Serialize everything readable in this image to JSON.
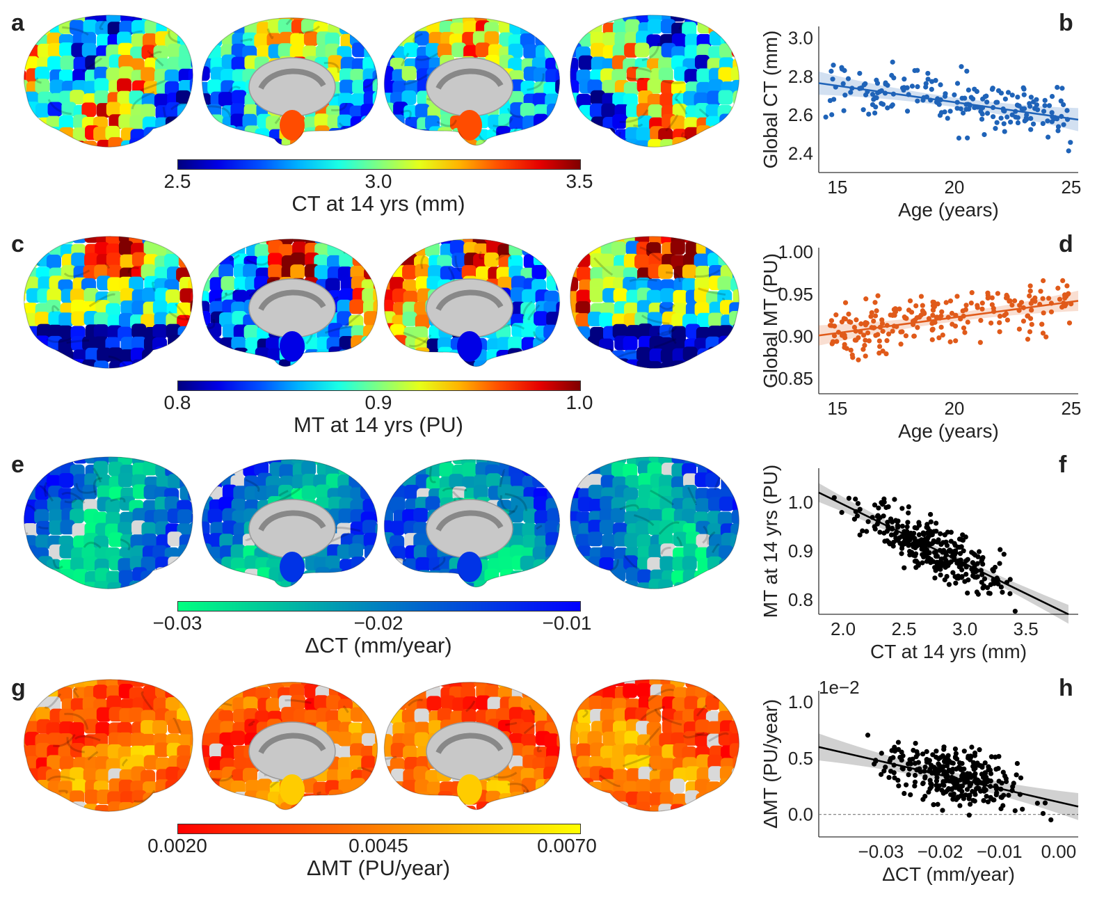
{
  "panels": {
    "a": "a",
    "b": "b",
    "c": "c",
    "d": "d",
    "e": "e",
    "f": "f",
    "g": "g",
    "h": "h"
  },
  "colorbars": [
    {
      "ticks": [
        "2.5",
        "3.0",
        "3.5"
      ],
      "label": "CT at 14 yrs (mm)",
      "colormap": "jet"
    },
    {
      "ticks": [
        "0.8",
        "0.9",
        "1.0"
      ],
      "label": "MT at 14 yrs (PU)",
      "colormap": "jet"
    },
    {
      "ticks": [
        "−0.03",
        "−0.02",
        "−0.01"
      ],
      "label": "ΔCT (mm/year)",
      "colormap": "winter_r"
    },
    {
      "ticks": [
        "0.0020",
        "0.0045",
        "0.0070"
      ],
      "label": "ΔMT (PU/year)",
      "colormap": "autumn"
    }
  ],
  "chart_data": [
    {
      "panel": "b",
      "type": "scatter",
      "xlabel": "Age (years)",
      "ylabel": "Global CT (mm)",
      "xlim": [
        14.2,
        25.3
      ],
      "ylim": [
        2.3,
        3.06
      ],
      "xticks": [
        "15",
        "20",
        "25"
      ],
      "yticks": [
        "2.4",
        "2.6",
        "2.8",
        "3.0"
      ],
      "color": "#1f63b8",
      "fit": {
        "x": [
          14.2,
          25.3
        ],
        "y": [
          2.765,
          2.575
        ],
        "ci": 0.025
      },
      "n_points": 200
    },
    {
      "panel": "d",
      "type": "scatter",
      "xlabel": "Age (years)",
      "ylabel": "Global MT (PU)",
      "xlim": [
        14.2,
        25.3
      ],
      "ylim": [
        0.832,
        1.005
      ],
      "xticks": [
        "15",
        "20",
        "25"
      ],
      "yticks": [
        "0.85",
        "0.90",
        "0.95",
        "1.00"
      ],
      "color": "#e05a1a",
      "fit": {
        "x": [
          14.2,
          25.3
        ],
        "y": [
          0.901,
          0.942
        ],
        "ci": 0.005
      },
      "n_points": 230
    },
    {
      "panel": "f",
      "type": "scatter",
      "xlabel": "CT at 14 yrs (mm)",
      "ylabel": "MT at 14 yrs (PU)",
      "xlim": [
        1.8,
        3.93
      ],
      "ylim": [
        0.77,
        1.07
      ],
      "xticks": [
        "2.0",
        "2.5",
        "3.0",
        "3.5"
      ],
      "yticks": [
        "0.8",
        "0.9",
        "1.0"
      ],
      "color": "#000000",
      "fit": {
        "x": [
          1.8,
          3.85
        ],
        "y": [
          1.02,
          0.77
        ],
        "ci": 0.008
      },
      "n_points": 330
    },
    {
      "panel": "h",
      "type": "scatter",
      "xlabel": "ΔCT (mm/year)",
      "ylabel": "ΔMT (PU/year)",
      "offset_label": "1e−2",
      "xlim": [
        -0.0405,
        0.0033
      ],
      "ylim": [
        -0.2,
        1.1
      ],
      "xticks": [
        "−0.03",
        "−0.02",
        "−0.01",
        "0.00"
      ],
      "yticks": [
        "0.0",
        "0.5",
        "1.0"
      ],
      "color": "#000000",
      "zero_line": true,
      "fit": {
        "x": [
          -0.0405,
          0.0033
        ],
        "y": [
          0.6,
          0.07
        ],
        "ci": 0.05
      },
      "n_points": 330
    }
  ]
}
